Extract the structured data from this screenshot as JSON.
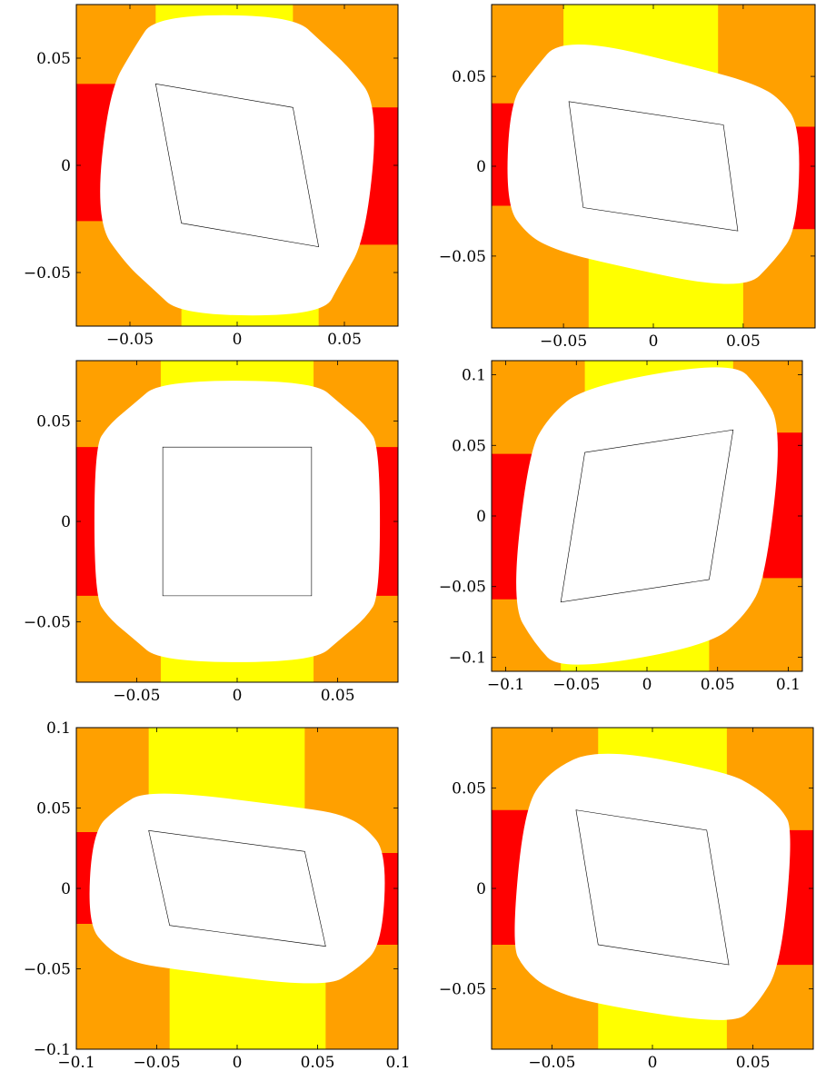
{
  "colors": {
    "background": "#ffa000",
    "yellow_region": "#ffff00",
    "red_region": "#ff0000",
    "hole": "#ffffff",
    "inner_curve": "#000000"
  },
  "chart_data": [
    {
      "type": "area",
      "xlim": [
        -0.075,
        0.075
      ],
      "ylim": [
        -0.075,
        0.075
      ],
      "xticks": [
        -0.05,
        0,
        0.05
      ],
      "xtick_labels": [
        "−0.05",
        "0",
        "0.05"
      ],
      "yticks": [
        -0.05,
        0,
        0.05
      ],
      "ytick_labels": [
        "−0.05",
        "0",
        "0.05"
      ],
      "top_band": [
        -0.038,
        0.026
      ],
      "bottom_band": [
        -0.026,
        0.038
      ],
      "left_red": [
        -0.026,
        0.038
      ],
      "right_red": [
        -0.037,
        0.027
      ],
      "hole": [
        [
          -0.038,
          0.07
        ],
        [
          0.026,
          0.07
        ],
        [
          0.04,
          0.057
        ],
        [
          0.052,
          0.046
        ],
        [
          0.066,
          0.028
        ],
        [
          0.06,
          -0.034
        ],
        [
          0.048,
          -0.055
        ],
        [
          0.04,
          -0.07
        ],
        [
          -0.026,
          -0.07
        ],
        [
          -0.04,
          -0.057
        ],
        [
          -0.052,
          -0.046
        ],
        [
          -0.066,
          -0.026
        ],
        [
          -0.06,
          0.034
        ],
        [
          -0.048,
          0.055
        ]
      ],
      "inner": [
        [
          -0.038,
          0.038
        ],
        [
          0.026,
          0.027
        ],
        [
          0.038,
          -0.038
        ],
        [
          -0.026,
          -0.027
        ]
      ]
    },
    {
      "type": "area",
      "xlim": [
        -0.09,
        0.09
      ],
      "ylim": [
        -0.09,
        0.09
      ],
      "xticks": [
        -0.05,
        0,
        0.05
      ],
      "xtick_labels": [
        "−0.05",
        "0",
        "0.05"
      ],
      "yticks": [
        -0.05,
        0,
        0.05
      ],
      "ytick_labels": [
        "−0.05",
        "0",
        "0.05"
      ],
      "top_band": [
        -0.05,
        0.036
      ],
      "bottom_band": [
        -0.036,
        0.05
      ],
      "left_red": [
        -0.022,
        0.035
      ],
      "right_red": [
        -0.035,
        0.022
      ],
      "hole": [
        [
          -0.05,
          0.073
        ],
        [
          0.036,
          0.052
        ],
        [
          0.058,
          0.045
        ],
        [
          0.07,
          0.038
        ],
        [
          0.082,
          0.022
        ],
        [
          0.08,
          -0.035
        ],
        [
          0.068,
          -0.052
        ],
        [
          0.05,
          -0.07
        ],
        [
          -0.036,
          -0.052
        ],
        [
          -0.058,
          -0.045
        ],
        [
          -0.07,
          -0.038
        ],
        [
          -0.082,
          -0.022
        ],
        [
          -0.08,
          0.035
        ],
        [
          -0.068,
          0.052
        ]
      ],
      "inner": [
        [
          -0.047,
          0.036
        ],
        [
          0.039,
          0.023
        ],
        [
          0.047,
          -0.036
        ],
        [
          -0.039,
          -0.023
        ]
      ]
    },
    {
      "type": "area",
      "xlim": [
        -0.08,
        0.08
      ],
      "ylim": [
        -0.08,
        0.08
      ],
      "xticks": [
        -0.05,
        0,
        0.05
      ],
      "xtick_labels": [
        "−0.05",
        "0",
        "0.05"
      ],
      "yticks": [
        -0.05,
        0,
        0.05
      ],
      "ytick_labels": [
        "−0.05",
        "0",
        "0.05"
      ],
      "top_band": [
        -0.038,
        0.038
      ],
      "bottom_band": [
        -0.038,
        0.038
      ],
      "left_red": [
        -0.037,
        0.037
      ],
      "right_red": [
        -0.037,
        0.037
      ],
      "hole": [
        [
          -0.038,
          0.07
        ],
        [
          0.038,
          0.07
        ],
        [
          0.052,
          0.058
        ],
        [
          0.064,
          0.048
        ],
        [
          0.071,
          0.037
        ],
        [
          0.071,
          -0.037
        ],
        [
          0.064,
          -0.048
        ],
        [
          0.052,
          -0.058
        ],
        [
          0.038,
          -0.07
        ],
        [
          -0.038,
          -0.07
        ],
        [
          -0.052,
          -0.058
        ],
        [
          -0.064,
          -0.048
        ],
        [
          -0.071,
          -0.037
        ],
        [
          -0.071,
          0.037
        ],
        [
          -0.064,
          0.048
        ],
        [
          -0.052,
          0.058
        ]
      ],
      "inner": [
        [
          -0.037,
          0.037
        ],
        [
          0.037,
          0.037
        ],
        [
          0.037,
          -0.037
        ],
        [
          -0.037,
          -0.037
        ]
      ]
    },
    {
      "type": "area",
      "xlim": [
        -0.11,
        0.11
      ],
      "ylim": [
        -0.11,
        0.11
      ],
      "xticks": [
        -0.1,
        -0.05,
        0,
        0.05,
        0.1
      ],
      "xtick_labels": [
        "−0.1",
        "−0.05",
        "0",
        "0.05",
        "0.1"
      ],
      "yticks": [
        -0.1,
        -0.05,
        0,
        0.05,
        0.1
      ],
      "ytick_labels": [
        "−0.1",
        "−0.05",
        "0",
        "0.05",
        "0.1"
      ],
      "top_band": [
        -0.044,
        0.061
      ],
      "bottom_band": [
        -0.061,
        0.044
      ],
      "left_red": [
        -0.059,
        0.044
      ],
      "right_red": [
        -0.044,
        0.059
      ],
      "hole": [
        [
          -0.044,
          0.092
        ],
        [
          0.061,
          0.11
        ],
        [
          0.08,
          0.09
        ],
        [
          0.096,
          0.062
        ],
        [
          0.084,
          -0.044
        ],
        [
          0.07,
          -0.07
        ],
        [
          0.044,
          -0.092
        ],
        [
          -0.061,
          -0.11
        ],
        [
          -0.08,
          -0.09
        ],
        [
          -0.096,
          -0.062
        ],
        [
          -0.084,
          0.044
        ],
        [
          -0.07,
          0.07
        ]
      ],
      "inner": [
        [
          -0.044,
          0.045
        ],
        [
          0.061,
          0.061
        ],
        [
          0.044,
          -0.045
        ],
        [
          -0.061,
          -0.061
        ]
      ]
    },
    {
      "type": "area",
      "xlim": [
        -0.1,
        0.1
      ],
      "ylim": [
        -0.1,
        0.1
      ],
      "xticks": [
        -0.1,
        -0.05,
        0,
        0.05,
        0.1
      ],
      "xtick_labels": [
        "−0.1",
        "−0.05",
        "0",
        "0.05",
        "0.1"
      ],
      "yticks": [
        -0.1,
        -0.05,
        0,
        0.05,
        0.1
      ],
      "ytick_labels": [
        "−0.1",
        "−0.05",
        "0",
        "0.05",
        "0.1"
      ],
      "top_band": [
        -0.055,
        0.042
      ],
      "bottom_band": [
        -0.042,
        0.055
      ],
      "left_red": [
        -0.022,
        0.035
      ],
      "right_red": [
        -0.035,
        0.022
      ],
      "hole": [
        [
          -0.055,
          0.062
        ],
        [
          0.042,
          0.05
        ],
        [
          0.065,
          0.046
        ],
        [
          0.08,
          0.038
        ],
        [
          0.093,
          0.022
        ],
        [
          0.09,
          -0.035
        ],
        [
          0.075,
          -0.05
        ],
        [
          0.055,
          -0.062
        ],
        [
          -0.042,
          -0.05
        ],
        [
          -0.065,
          -0.046
        ],
        [
          -0.08,
          -0.038
        ],
        [
          -0.093,
          -0.022
        ],
        [
          -0.09,
          0.035
        ],
        [
          -0.075,
          0.05
        ]
      ],
      "inner": [
        [
          -0.055,
          0.036
        ],
        [
          0.042,
          0.023
        ],
        [
          0.055,
          -0.036
        ],
        [
          -0.042,
          -0.023
        ]
      ]
    },
    {
      "type": "area",
      "xlim": [
        -0.08,
        0.08
      ],
      "ylim": [
        -0.08,
        0.08
      ],
      "xticks": [
        -0.05,
        0,
        0.05
      ],
      "xtick_labels": [
        "−0.05",
        "0",
        "0.05"
      ],
      "yticks": [
        -0.05,
        0,
        0.05
      ],
      "ytick_labels": [
        "−0.05",
        "0",
        "0.05"
      ],
      "top_band": [
        -0.027,
        0.037
      ],
      "bottom_band": [
        -0.027,
        0.037
      ],
      "left_red": [
        -0.028,
        0.039
      ],
      "right_red": [
        -0.038,
        0.029
      ],
      "hole": [
        [
          -0.027,
          0.07
        ],
        [
          0.037,
          0.058
        ],
        [
          0.052,
          0.05
        ],
        [
          0.064,
          0.04
        ],
        [
          0.07,
          0.029
        ],
        [
          0.064,
          -0.038
        ],
        [
          0.052,
          -0.058
        ],
        [
          0.04,
          -0.068
        ],
        [
          -0.027,
          -0.058
        ],
        [
          -0.052,
          -0.05
        ],
        [
          -0.064,
          -0.04
        ],
        [
          -0.07,
          -0.028
        ],
        [
          -0.064,
          0.039
        ],
        [
          -0.052,
          0.058
        ]
      ],
      "inner": [
        [
          -0.038,
          0.039
        ],
        [
          0.027,
          0.029
        ],
        [
          0.038,
          -0.038
        ],
        [
          -0.027,
          -0.028
        ]
      ]
    }
  ]
}
